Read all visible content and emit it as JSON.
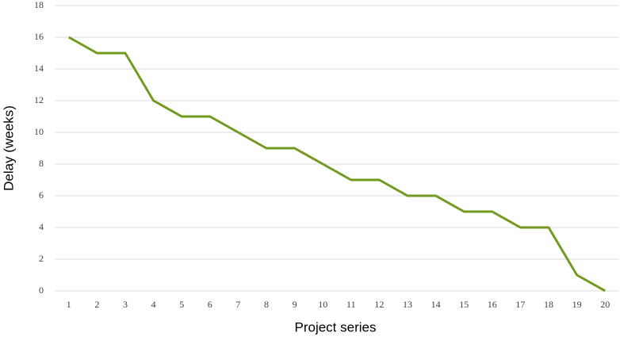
{
  "chart_data": {
    "type": "line",
    "x_label": "Project series",
    "y_label": "Delay (weeks)",
    "categories": [
      1,
      2,
      3,
      4,
      5,
      6,
      7,
      8,
      9,
      10,
      11,
      12,
      13,
      14,
      15,
      16,
      17,
      18,
      19,
      20
    ],
    "values": [
      16,
      15,
      15,
      12,
      11,
      11,
      10,
      9,
      9,
      8,
      7,
      7,
      6,
      6,
      5,
      5,
      4,
      4,
      1,
      0
    ],
    "color": "#719a1f",
    "ylim": [
      0,
      18
    ],
    "yticks": [
      0,
      2,
      4,
      6,
      8,
      10,
      12,
      14,
      16,
      18
    ],
    "grid": true
  }
}
